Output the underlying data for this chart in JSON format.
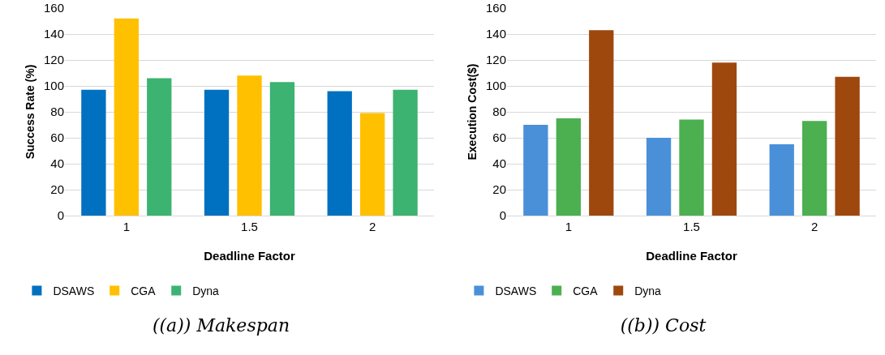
{
  "chart_data": [
    {
      "type": "bar",
      "title": "((a)) Makespan",
      "xlabel": "Deadline Factor",
      "ylabel": "Success Rate (%)",
      "categories": [
        "1",
        "1.5",
        "2"
      ],
      "series": [
        {
          "name": "DSAWS",
          "color": "#0070c0",
          "values": [
            97,
            97,
            96
          ]
        },
        {
          "name": "CGA",
          "color": "#ffc000",
          "values": [
            152,
            108,
            79
          ]
        },
        {
          "name": "Dyna",
          "color": "#3cb371",
          "values": [
            106,
            103,
            97
          ]
        }
      ],
      "ylim": [
        0,
        160
      ],
      "yticks": [
        0,
        20,
        40,
        60,
        80,
        100,
        120,
        140,
        160
      ],
      "grid": "y",
      "legend": "bottom left"
    },
    {
      "type": "bar",
      "title": "((b)) Cost",
      "xlabel": "Deadline Factor",
      "ylabel": "Execution Cost($)",
      "categories": [
        "1",
        "1.5",
        "2"
      ],
      "series": [
        {
          "name": "DSAWS",
          "color": "#4a90d9",
          "values": [
            70,
            60,
            55
          ]
        },
        {
          "name": "CGA",
          "color": "#4caf50",
          "values": [
            75,
            74,
            73
          ]
        },
        {
          "name": "Dyna",
          "color": "#9e480e",
          "values": [
            143,
            118,
            107
          ]
        }
      ],
      "ylim": [
        0,
        160
      ],
      "yticks": [
        0,
        20,
        40,
        60,
        80,
        100,
        120,
        140,
        160
      ],
      "grid": "y",
      "legend": "bottom left"
    }
  ]
}
